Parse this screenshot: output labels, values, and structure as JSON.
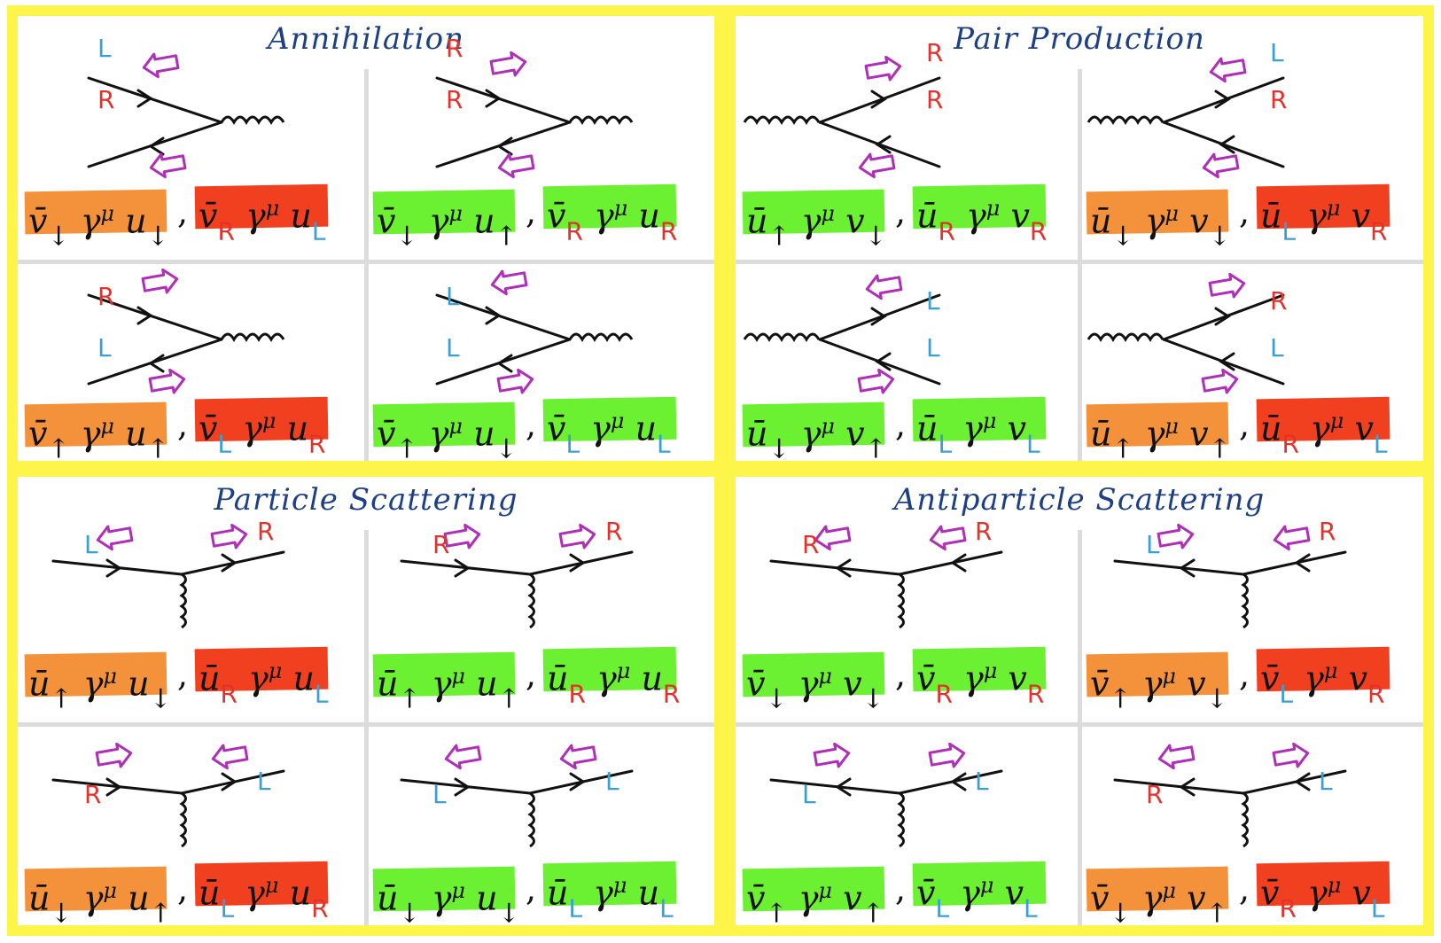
{
  "colors": {
    "frame": "#fdf54a",
    "title": "#1d3f86",
    "orange": "#f3923a",
    "red": "#f1401f",
    "green": "#6cf032",
    "label_R": "#e2322b",
    "label_L": "#3a9fd4",
    "helicity_arrow": "#b02fb8"
  },
  "sections": [
    {
      "title": "Annihilation",
      "cells": [
        {
          "labels": [
            "L",
            "R"
          ],
          "expr": [
            {
              "color": "orange",
              "bar": "v",
              "lo": "↓",
              "ga": "u",
              "li": "↓"
            },
            {
              "color": "red",
              "bar": "v",
              "lo": "R",
              "ga": "u",
              "li": "L"
            }
          ]
        },
        {
          "labels": [
            "R",
            "R"
          ],
          "expr": [
            {
              "color": "green",
              "bar": "v",
              "lo": "↓",
              "ga": "u",
              "li": "↑"
            },
            {
              "color": "green",
              "bar": "v",
              "lo": "R",
              "ga": "u",
              "li": "R"
            }
          ]
        },
        {
          "labels": [
            "R",
            "L"
          ],
          "expr": [
            {
              "color": "orange",
              "bar": "v",
              "lo": "↑",
              "ga": "u",
              "li": "↑"
            },
            {
              "color": "red",
              "bar": "v",
              "lo": "L",
              "ga": "u",
              "li": "R"
            }
          ]
        },
        {
          "labels": [
            "L",
            "L"
          ],
          "expr": [
            {
              "color": "green",
              "bar": "v",
              "lo": "↑",
              "ga": "u",
              "li": "↓"
            },
            {
              "color": "green",
              "bar": "v",
              "lo": "L",
              "ga": "u",
              "li": "L"
            }
          ]
        }
      ]
    },
    {
      "title": "Pair Production",
      "cells": [
        {
          "labels": [
            "R",
            "R"
          ],
          "expr": [
            {
              "color": "green",
              "bar": "u",
              "lo": "↑",
              "ga": "v",
              "li": "↓"
            },
            {
              "color": "green",
              "bar": "u",
              "lo": "R",
              "ga": "v",
              "li": "R"
            }
          ]
        },
        {
          "labels": [
            "L",
            "R"
          ],
          "expr": [
            {
              "color": "orange",
              "bar": "u",
              "lo": "↓",
              "ga": "v",
              "li": "↓"
            },
            {
              "color": "red",
              "bar": "u",
              "lo": "L",
              "ga": "v",
              "li": "R"
            }
          ]
        },
        {
          "labels": [
            "L",
            "L"
          ],
          "expr": [
            {
              "color": "green",
              "bar": "u",
              "lo": "↓",
              "ga": "v",
              "li": "↑"
            },
            {
              "color": "green",
              "bar": "u",
              "lo": "L",
              "ga": "v",
              "li": "L"
            }
          ]
        },
        {
          "labels": [
            "R",
            "L"
          ],
          "expr": [
            {
              "color": "orange",
              "bar": "u",
              "lo": "↑",
              "ga": "v",
              "li": "↑"
            },
            {
              "color": "red",
              "bar": "u",
              "lo": "R",
              "ga": "v",
              "li": "L"
            }
          ]
        }
      ]
    },
    {
      "title": "Particle Scattering",
      "cells": [
        {
          "labels": [
            "L",
            "R"
          ],
          "expr": [
            {
              "color": "orange",
              "bar": "u",
              "lo": "↑",
              "ga": "u",
              "li": "↓"
            },
            {
              "color": "red",
              "bar": "u",
              "lo": "R",
              "ga": "u",
              "li": "L"
            }
          ]
        },
        {
          "labels": [
            "R",
            "R"
          ],
          "expr": [
            {
              "color": "green",
              "bar": "u",
              "lo": "↑",
              "ga": "u",
              "li": "↑"
            },
            {
              "color": "green",
              "bar": "u",
              "lo": "R",
              "ga": "u",
              "li": "R"
            }
          ]
        },
        {
          "labels": [
            "R",
            "L"
          ],
          "expr": [
            {
              "color": "orange",
              "bar": "u",
              "lo": "↓",
              "ga": "u",
              "li": "↑"
            },
            {
              "color": "red",
              "bar": "u",
              "lo": "L",
              "ga": "u",
              "li": "R"
            }
          ]
        },
        {
          "labels": [
            "L",
            "L"
          ],
          "expr": [
            {
              "color": "green",
              "bar": "u",
              "lo": "↓",
              "ga": "u",
              "li": "↓"
            },
            {
              "color": "green",
              "bar": "u",
              "lo": "L",
              "ga": "u",
              "li": "L"
            }
          ]
        }
      ]
    },
    {
      "title": "Antiparticle Scattering",
      "cells": [
        {
          "labels": [
            "R",
            "R"
          ],
          "expr": [
            {
              "color": "green",
              "bar": "v",
              "lo": "↓",
              "ga": "v",
              "li": "↓"
            },
            {
              "color": "green",
              "bar": "v",
              "lo": "R",
              "ga": "v",
              "li": "R"
            }
          ]
        },
        {
          "labels": [
            "L",
            "R"
          ],
          "expr": [
            {
              "color": "orange",
              "bar": "v",
              "lo": "↑",
              "ga": "v",
              "li": "↓"
            },
            {
              "color": "red",
              "bar": "v",
              "lo": "L",
              "ga": "v",
              "li": "R"
            }
          ]
        },
        {
          "labels": [
            "L",
            "L"
          ],
          "expr": [
            {
              "color": "green",
              "bar": "v",
              "lo": "↑",
              "ga": "v",
              "li": "↑"
            },
            {
              "color": "green",
              "bar": "v",
              "lo": "L",
              "ga": "v",
              "li": "L"
            }
          ]
        },
        {
          "labels": [
            "R",
            "L"
          ],
          "expr": [
            {
              "color": "orange",
              "bar": "v",
              "lo": "↓",
              "ga": "v",
              "li": "↑"
            },
            {
              "color": "red",
              "bar": "v",
              "lo": "R",
              "ga": "v",
              "li": "L"
            }
          ]
        }
      ]
    }
  ],
  "symbols": {
    "gamma": "γ",
    "mu": "μ",
    "bar": "̄",
    "comma": ","
  }
}
